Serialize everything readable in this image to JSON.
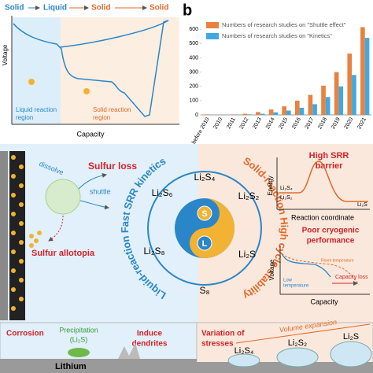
{
  "panel_a": {
    "phases": [
      "Solid",
      "Liquid",
      "Solid",
      "Solid"
    ],
    "y_label": "Voltage",
    "x_label": "Capacity",
    "liquid_region": [
      "Liquid reaction",
      "region"
    ],
    "solid_region": [
      "Solid reaction",
      "region"
    ]
  },
  "chart_data": {
    "type": "bar",
    "panel_label": "b",
    "categories": [
      "before 2010",
      "2010",
      "2011",
      "2012",
      "2013",
      "2014",
      "2015",
      "2016",
      "2017",
      "2018",
      "2019",
      "2020",
      "2021"
    ],
    "series": [
      {
        "name": "Numbers of research studies on \"Shuttle effect\"",
        "color": "#e8823f",
        "values": [
          3,
          2,
          3,
          8,
          20,
          38,
          60,
          100,
          140,
          205,
          300,
          430,
          615
        ]
      },
      {
        "name": "Numbers of research studies on \"Kinetics\"",
        "color": "#3fa9e0",
        "values": [
          2,
          1,
          2,
          4,
          8,
          18,
          30,
          50,
          75,
          125,
          200,
          280,
          540
        ]
      }
    ],
    "ylim": [
      0,
      640
    ],
    "yticks": [
      0,
      100,
      200,
      300,
      400,
      500,
      600
    ],
    "grid": false,
    "legend": "top-left"
  },
  "diagram": {
    "dissolve": "dissolve",
    "sulfur_loss": "Sulfur loss",
    "shuttle": "shuttle",
    "sulfur_allotopia": "Sulfur allotopia",
    "liquid_arc": "Liquid-reaction Fast SRR kinetics",
    "solid_arc": "Solid-reaction High cycle stability",
    "center_s": "S",
    "center_l": "L",
    "species": [
      "Li₂S₆",
      "Li₂S₄",
      "Li₂S₂",
      "Li₂S₈",
      "Li₂S",
      "S₈"
    ],
    "barrier_title": [
      "High SRR",
      "barrier"
    ],
    "energy": "Energy",
    "barrier_left": [
      "Li₂S₄",
      "Li₂S₂"
    ],
    "barrier_right": "Li₂S",
    "reaction_coordinate": "Reaction coordinate",
    "cryo_title": [
      "Poor cryogenic",
      "performance"
    ],
    "voltage": "Voltage",
    "capacity": "Capacity",
    "low_temperature": [
      "Low",
      "temperature"
    ],
    "room_temperature": "Room temperature",
    "capacity_loss": "Capacity loss",
    "corrosion": "Corrosion",
    "precipitation": [
      "Precipitation",
      "(Li₂S)"
    ],
    "dendrites": [
      "Induce",
      "dendrites"
    ],
    "lithium": "Lithium",
    "stresses": [
      "Variation of",
      "stresses"
    ],
    "volume_expansion": "Volume expansion",
    "volume_species": [
      "Li₂S₄",
      "Li₂S₂",
      "Li₂S"
    ]
  }
}
